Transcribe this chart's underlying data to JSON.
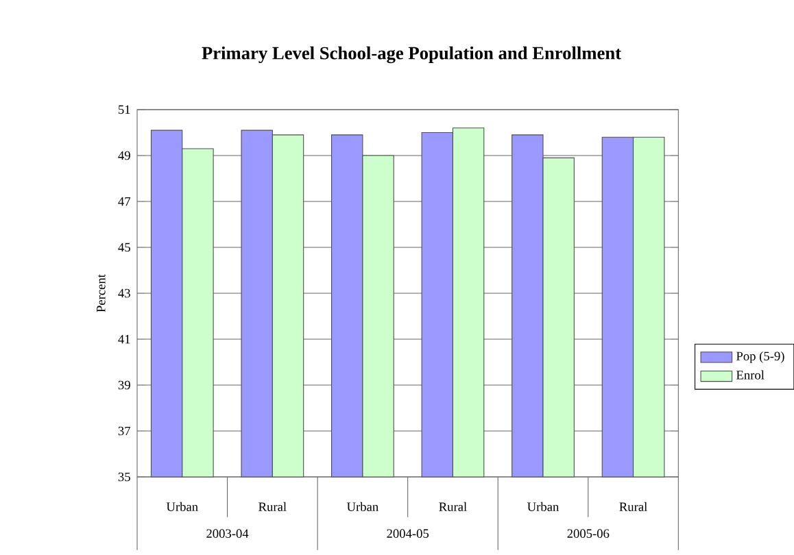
{
  "chart_data": {
    "type": "bar",
    "title": "Primary Level School-age Population and Enrollment",
    "ylabel": "Percent",
    "categories": [
      "Urban",
      "Rural",
      "Urban",
      "Rural",
      "Urban",
      "Rural"
    ],
    "series": [
      {
        "name": "Pop (5-9)",
        "color": "#9999ff",
        "values": [
          50.1,
          50.1,
          49.9,
          50.0,
          49.9,
          49.8
        ]
      },
      {
        "name": "Enrol",
        "color": "#ccffcc",
        "values": [
          49.3,
          49.9,
          49.0,
          50.2,
          48.9,
          49.8
        ]
      }
    ],
    "annotations": [
      "2003-04",
      "2004-05",
      "2005-06"
    ],
    "ylim": [
      35,
      51
    ],
    "yticks": [
      35,
      37,
      39,
      41,
      43,
      45,
      47,
      49,
      51
    ],
    "grid": "y",
    "legend": "right"
  }
}
